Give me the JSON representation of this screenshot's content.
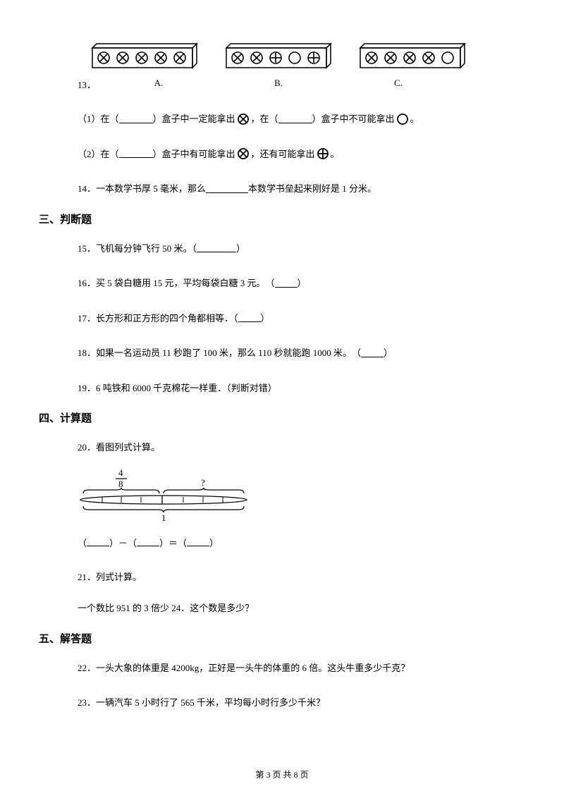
{
  "boxes": {
    "A": {
      "symbols": [
        "cross",
        "cross",
        "cross",
        "cross",
        "cross"
      ]
    },
    "B": {
      "symbols": [
        "cross",
        "cross",
        "plus",
        "circle",
        "plus"
      ]
    },
    "C": {
      "symbols": [
        "cross",
        "cross",
        "cross",
        "cross",
        "circle"
      ]
    }
  },
  "q13": {
    "num": "13．",
    "labelA": "A.",
    "labelB": "B.",
    "labelC": "C.",
    "line1_a": "（1）在（",
    "line1_b": "）盒子中一定能拿出",
    "line1_c": "，在（",
    "line1_d": "）盒子中不可能拿出",
    "line1_e": "。",
    "line2_a": "（2）在（",
    "line2_b": "）盒子中有可能拿出",
    "line2_c": "，还有可能拿出",
    "line2_d": "。"
  },
  "q14": {
    "a": "14．一本数学书厚 5 毫米，那么",
    "b": "本数学书垒起来刚好是 1 分米。"
  },
  "sec3": "三、判断题",
  "q15": {
    "a": "15．飞机每分钟飞行 50 米。（",
    "b": "）"
  },
  "q16": {
    "a": "16．买 5 袋白糖用 15 元，平均每袋白糖 3 元。　（",
    "b": "）"
  },
  "q17": {
    "a": "17．长方形和正方形的四个角都相等．（",
    "b": "）"
  },
  "q18": {
    "a": "18．如果一名运动员 11 秒跑了 100 米，那么 110 秒就能跑 1000 米。　（",
    "b": "）"
  },
  "q19": {
    "a": "19．6 吨铁和 6000 千克棉花一样重．（判断对错）"
  },
  "sec4": "四、计算题",
  "q20": {
    "a": "20．看图列式计算。"
  },
  "diagram": {
    "frac_num": "4",
    "frac_den": "8",
    "qmark": "?",
    "one": "1"
  },
  "eq": {
    "l": "（",
    "m1": "）－（",
    "m2": "）＝（",
    "r": "）"
  },
  "q21": {
    "a": "21．列式计算。",
    "b": "一个数比 951 的 3 倍少 24．这个数是多少？"
  },
  "sec5": "五、解答题",
  "q22": {
    "a": "22．一头大象的体重是 4200kg，正好是一头牛的体重的 6 倍。这头牛重多少千克？"
  },
  "q23": {
    "a": "23．一辆汽车 5 小时行了 565 千米，平均每小时行多少千米？"
  },
  "footer": "第 3 页 共 8 页",
  "colors": {
    "stroke": "#000000"
  }
}
